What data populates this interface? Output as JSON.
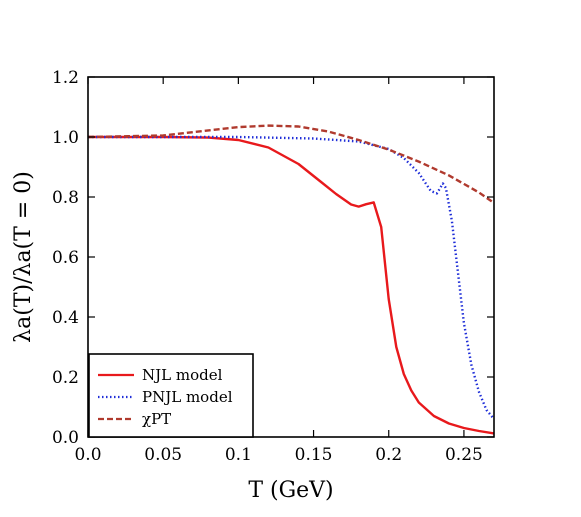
{
  "chart_data": {
    "type": "line",
    "xlabel": "T (GeV)",
    "ylabel": "λa(T)/λa(T = 0)",
    "xlim": [
      0,
      0.27
    ],
    "ylim": [
      0,
      1.2
    ],
    "xticks": [
      0,
      0.05,
      0.1,
      0.15,
      0.2,
      0.25
    ],
    "xtick_labels": [
      "0.0",
      "0.05",
      "0.1",
      "0.15",
      "0.2",
      "0.25"
    ],
    "yticks": [
      0,
      0.2,
      0.4,
      0.6,
      0.8,
      1.0,
      1.2
    ],
    "ytick_labels": [
      "0.0",
      "0.2",
      "0.4",
      "0.6",
      "0.8",
      "1.0",
      "1.2"
    ],
    "grid": false,
    "legend_position": "bottom-left",
    "series": [
      {
        "name": "NJL model",
        "color": "#e8191c",
        "style": "solid",
        "points": [
          [
            0,
            1.0
          ],
          [
            0.05,
            1.0
          ],
          [
            0.08,
            0.998
          ],
          [
            0.1,
            0.99
          ],
          [
            0.12,
            0.965
          ],
          [
            0.14,
            0.91
          ],
          [
            0.155,
            0.85
          ],
          [
            0.165,
            0.81
          ],
          [
            0.175,
            0.775
          ],
          [
            0.18,
            0.768
          ],
          [
            0.185,
            0.776
          ],
          [
            0.19,
            0.782
          ],
          [
            0.195,
            0.7
          ],
          [
            0.2,
            0.46
          ],
          [
            0.205,
            0.3
          ],
          [
            0.21,
            0.21
          ],
          [
            0.215,
            0.155
          ],
          [
            0.22,
            0.115
          ],
          [
            0.23,
            0.07
          ],
          [
            0.24,
            0.045
          ],
          [
            0.25,
            0.03
          ],
          [
            0.26,
            0.02
          ],
          [
            0.27,
            0.012
          ]
        ]
      },
      {
        "name": "PNJL model",
        "color": "#1f2ed8",
        "style": "dotted",
        "points": [
          [
            0,
            1.0
          ],
          [
            0.05,
            1.0
          ],
          [
            0.1,
            1.0
          ],
          [
            0.15,
            0.995
          ],
          [
            0.18,
            0.985
          ],
          [
            0.2,
            0.96
          ],
          [
            0.21,
            0.93
          ],
          [
            0.22,
            0.88
          ],
          [
            0.228,
            0.82
          ],
          [
            0.232,
            0.812
          ],
          [
            0.236,
            0.845
          ],
          [
            0.238,
            0.83
          ],
          [
            0.242,
            0.72
          ],
          [
            0.246,
            0.55
          ],
          [
            0.25,
            0.38
          ],
          [
            0.255,
            0.24
          ],
          [
            0.26,
            0.15
          ],
          [
            0.265,
            0.09
          ],
          [
            0.27,
            0.06
          ]
        ]
      },
      {
        "name": "χPT",
        "color": "#b03a2e",
        "style": "dashed",
        "points": [
          [
            0,
            1.0
          ],
          [
            0.05,
            1.005
          ],
          [
            0.08,
            1.022
          ],
          [
            0.1,
            1.033
          ],
          [
            0.12,
            1.038
          ],
          [
            0.14,
            1.035
          ],
          [
            0.16,
            1.018
          ],
          [
            0.18,
            0.99
          ],
          [
            0.2,
            0.958
          ],
          [
            0.22,
            0.918
          ],
          [
            0.24,
            0.872
          ],
          [
            0.26,
            0.815
          ],
          [
            0.27,
            0.78
          ]
        ]
      }
    ]
  }
}
